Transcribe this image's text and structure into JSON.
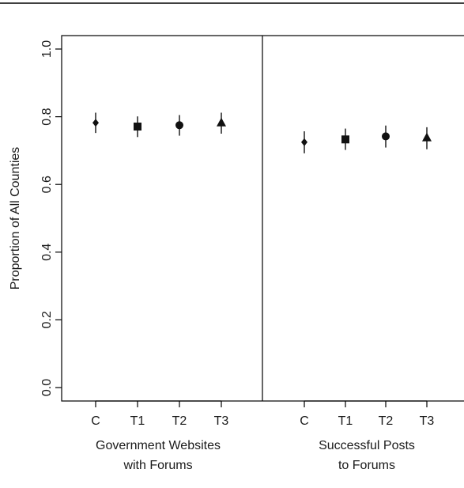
{
  "chart_data": {
    "type": "scatter",
    "ylabel": "Proportion of All Counties",
    "ylim": [
      0,
      1
    ],
    "yticks": [
      "0.0",
      "0.2",
      "0.4",
      "0.6",
      "0.8",
      "1.0"
    ],
    "grid": false,
    "panels": [
      {
        "label_line1": "Government Websites",
        "label_line2": "with Forums",
        "categories": [
          "C",
          "T1",
          "T2",
          "T3"
        ],
        "values": [
          0.782,
          0.771,
          0.775,
          0.781
        ],
        "lower": [
          0.752,
          0.74,
          0.744,
          0.75
        ],
        "upper": [
          0.812,
          0.801,
          0.805,
          0.812
        ],
        "markers": [
          "diamond",
          "square",
          "circle",
          "triangle"
        ]
      },
      {
        "label_line1": "Successful Posts",
        "label_line2": "to Forums",
        "categories": [
          "C",
          "T1",
          "T2",
          "T3"
        ],
        "values": [
          0.725,
          0.733,
          0.742,
          0.737
        ],
        "lower": [
          0.692,
          0.702,
          0.709,
          0.704
        ],
        "upper": [
          0.757,
          0.765,
          0.774,
          0.769
        ],
        "markers": [
          "diamond",
          "square",
          "circle",
          "triangle"
        ]
      }
    ]
  }
}
